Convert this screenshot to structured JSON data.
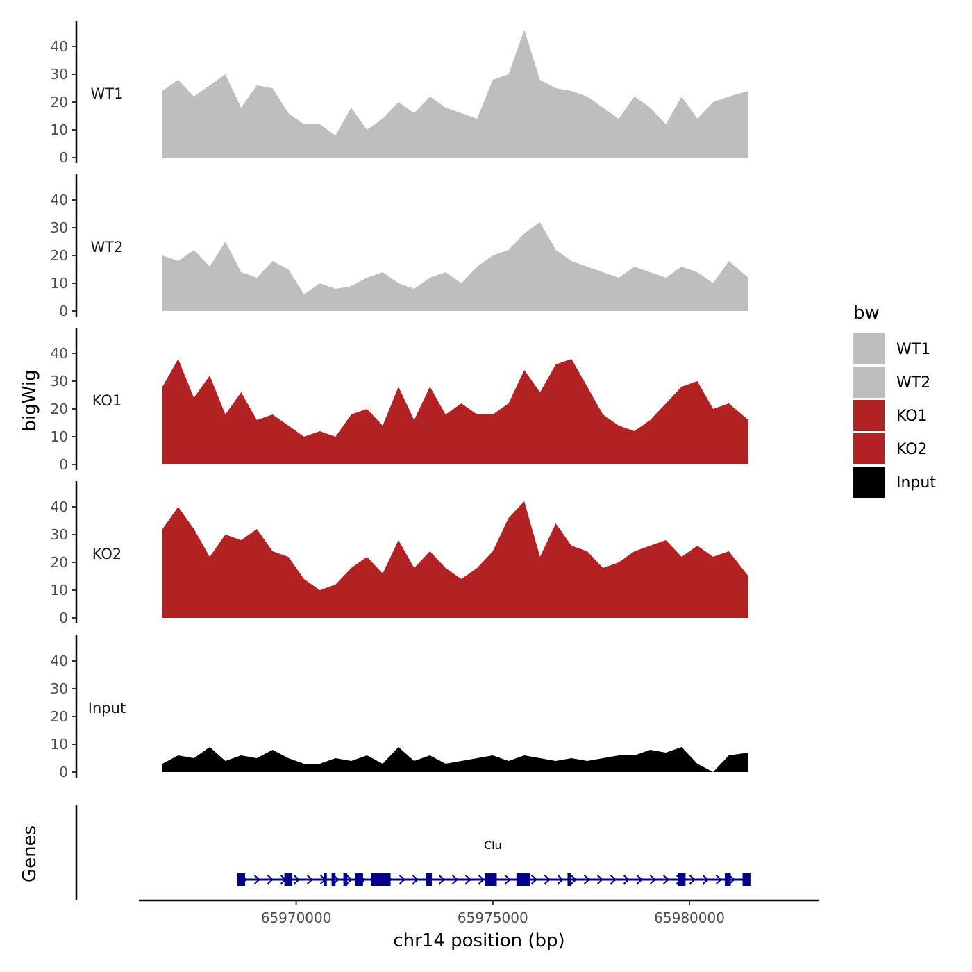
{
  "chart_data": {
    "type": "area",
    "title": "",
    "ylabel": "bigWig",
    "xlabel": "chr14 position (bp)",
    "genes_label": "Genes",
    "ylim": [
      0,
      48
    ],
    "y_ticks": [
      "0",
      "10",
      "20",
      "30",
      "40"
    ],
    "y_tick_values": [
      0,
      10,
      20,
      30,
      40
    ],
    "xlim": [
      65966000,
      65983300
    ],
    "x_ticks": [
      "65970000",
      "65975000",
      "65980000"
    ],
    "x_tick_values": [
      65970000,
      65975000,
      65980000
    ],
    "legend": {
      "title": "bw",
      "items": [
        {
          "label": "WT1",
          "color": "#bebebe"
        },
        {
          "label": "WT2",
          "color": "#bebebe"
        },
        {
          "label": "KO1",
          "color": "#b22222"
        },
        {
          "label": "KO2",
          "color": "#b22222"
        },
        {
          "label": "Input",
          "color": "#000000"
        }
      ]
    },
    "x": [
      65966600,
      65967000,
      65967400,
      65967800,
      65968200,
      65968600,
      65969000,
      65969400,
      65969800,
      65970200,
      65970600,
      65971000,
      65971400,
      65971800,
      65972200,
      65972600,
      65973000,
      65973400,
      65973800,
      65974200,
      65974600,
      65975000,
      65975400,
      65975800,
      65976200,
      65976600,
      65977000,
      65977400,
      65977800,
      65978200,
      65978600,
      65979000,
      65979400,
      65979800,
      65980200,
      65980600,
      65981000,
      65981500
    ],
    "series": [
      {
        "name": "WT1",
        "color": "#bebebe",
        "values": [
          24,
          28,
          22,
          26,
          30,
          18,
          26,
          25,
          16,
          12,
          12,
          8,
          18,
          10,
          14,
          20,
          16,
          22,
          18,
          16,
          14,
          28,
          30,
          46,
          28,
          25,
          24,
          22,
          18,
          14,
          22,
          18,
          12,
          22,
          14,
          20,
          22,
          24
        ]
      },
      {
        "name": "WT2",
        "color": "#bebebe",
        "values": [
          20,
          18,
          22,
          16,
          25,
          14,
          12,
          18,
          15,
          6,
          10,
          8,
          9,
          12,
          14,
          10,
          8,
          12,
          14,
          10,
          16,
          20,
          22,
          28,
          32,
          22,
          18,
          16,
          14,
          12,
          16,
          14,
          12,
          16,
          14,
          10,
          18,
          12
        ]
      },
      {
        "name": "KO1",
        "color": "#b22222",
        "values": [
          28,
          38,
          24,
          32,
          18,
          26,
          16,
          18,
          14,
          10,
          12,
          10,
          18,
          20,
          14,
          28,
          16,
          28,
          18,
          22,
          18,
          18,
          22,
          34,
          26,
          36,
          38,
          28,
          18,
          14,
          12,
          16,
          22,
          28,
          30,
          20,
          22,
          16
        ]
      },
      {
        "name": "KO2",
        "color": "#b22222",
        "values": [
          32,
          40,
          32,
          22,
          30,
          28,
          32,
          24,
          22,
          14,
          10,
          12,
          18,
          22,
          16,
          28,
          18,
          24,
          18,
          14,
          18,
          24,
          36,
          42,
          22,
          34,
          26,
          24,
          18,
          20,
          24,
          26,
          28,
          22,
          26,
          22,
          24,
          15
        ]
      },
      {
        "name": "Input",
        "color": "#000000",
        "values": [
          3,
          6,
          5,
          9,
          4,
          6,
          5,
          8,
          5,
          3,
          3,
          5,
          4,
          6,
          3,
          9,
          4,
          6,
          3,
          4,
          5,
          6,
          4,
          6,
          5,
          4,
          5,
          4,
          5,
          6,
          6,
          8,
          7,
          9,
          3,
          0,
          6,
          7
        ]
      }
    ],
    "gene": {
      "name": "Clu",
      "start": 65968500,
      "end": 65981500,
      "strand": "+",
      "color": "#00008b",
      "exons": [
        [
          65968500,
          65968700
        ],
        [
          65969700,
          65969900
        ],
        [
          65970700,
          65970780
        ],
        [
          65970900,
          65971000
        ],
        [
          65971200,
          65971300
        ],
        [
          65971500,
          65971700
        ],
        [
          65971900,
          65972400
        ],
        [
          65973300,
          65973450
        ],
        [
          65974800,
          65975100
        ],
        [
          65975600,
          65975950
        ],
        [
          65976900,
          65976980
        ],
        [
          65979700,
          65979900
        ],
        [
          65980900,
          65981050
        ],
        [
          65981350,
          65981550
        ]
      ]
    }
  }
}
